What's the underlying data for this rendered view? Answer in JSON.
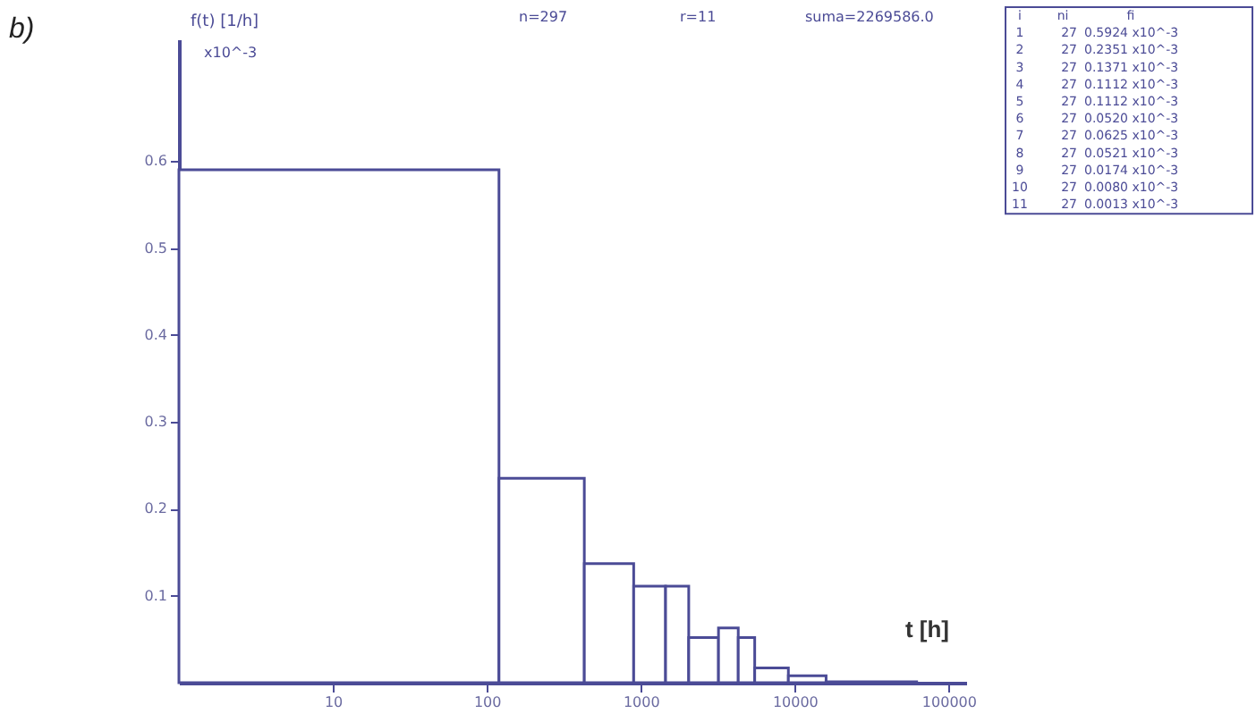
{
  "chart_data": {
    "type": "histogram",
    "xlabel": "t [h]",
    "ylabel": "f(t) [1/h]",
    "bins": [
      1,
      120,
      430,
      900,
      1450,
      2050,
      3200,
      4300,
      5500,
      9100,
      16000,
      62000
    ],
    "values": [
      0.59,
      0.235,
      0.137,
      0.111,
      0.111,
      0.052,
      0.063,
      0.052,
      0.017,
      0.008,
      0.001
    ],
    "color": "#4b4b96",
    "log": "x",
    "xlim": [
      1,
      130000
    ],
    "xticks": [
      10,
      100,
      1000,
      10000,
      100000
    ],
    "ylim": [
      0,
      0.74
    ],
    "yticks": [
      0.1,
      0.2,
      0.3,
      0.4,
      0.5,
      0.6
    ],
    "grid": false,
    "annotations": [
      "b)",
      "x10^-3",
      "n=297",
      "r=11",
      "suma=2269586.0",
      "i",
      "ni",
      "fi",
      "1",
      "2",
      "3",
      "4",
      "5",
      "6",
      "7",
      "8",
      "9",
      "10",
      "11",
      "27",
      "27",
      "27",
      "27",
      "27",
      "27",
      "27",
      "27",
      "27",
      "27",
      "27",
      "0.5924 x10^-3",
      "0.2351 x10^-3",
      "0.1371 x10^-3",
      "0.1112 x10^-3",
      "0.1112 x10^-3",
      "0.0520 x10^-3",
      "0.0625 x10^-3",
      "0.0521 x10^-3",
      "0.0174 x10^-3",
      "0.0080 x10^-3",
      "0.0013 x10^-3"
    ]
  }
}
